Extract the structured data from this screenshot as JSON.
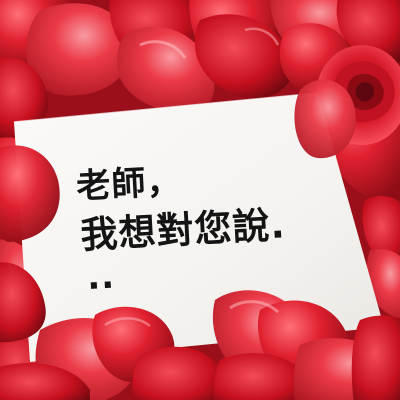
{
  "message": {
    "line1": "老師，",
    "line2": "我想對您說.",
    "line3": ".."
  },
  "colors": {
    "card": "#f7f5f2",
    "ink": "#141414",
    "petal_light": "#ec3a48",
    "petal_mid": "#d41626",
    "petal_dark": "#8e0d16",
    "petal_highlight": "#f6a1a8"
  }
}
